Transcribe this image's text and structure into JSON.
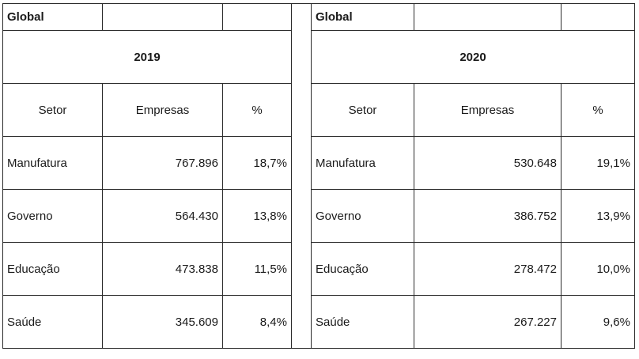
{
  "left": {
    "title": "Global",
    "year": "2019",
    "headers": {
      "sector": "Setor",
      "companies": "Empresas",
      "percent": "%"
    },
    "rows": [
      {
        "sector": "Manufatura",
        "companies": "767.896",
        "percent": "18,7%"
      },
      {
        "sector": "Governo",
        "companies": "564.430",
        "percent": "13,8%"
      },
      {
        "sector": "Educação",
        "companies": "473.838",
        "percent": "11,5%"
      },
      {
        "sector": "Saúde",
        "companies": "345.609",
        "percent": "8,4%"
      }
    ]
  },
  "right": {
    "title": "Global",
    "year": "2020",
    "headers": {
      "sector": "Setor",
      "companies": "Empresas",
      "percent": "%"
    },
    "rows": [
      {
        "sector": "Manufatura",
        "companies": "530.648",
        "percent": "19,1%"
      },
      {
        "sector": "Governo",
        "companies": "386.752",
        "percent": "13,9%"
      },
      {
        "sector": "Educação",
        "companies": "278.472",
        "percent": "10,0%"
      },
      {
        "sector": "Saúde",
        "companies": "267.227",
        "percent": "9,6%"
      }
    ]
  }
}
